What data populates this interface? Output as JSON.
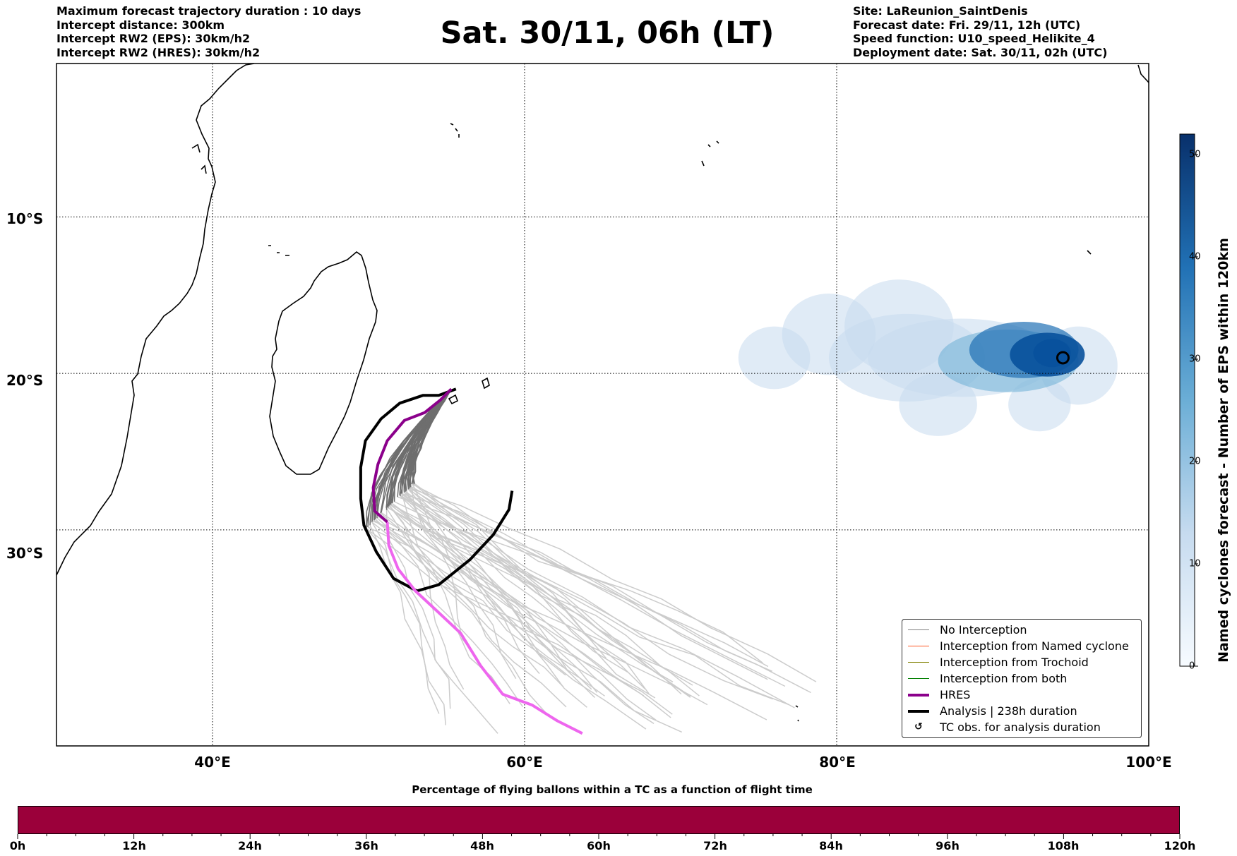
{
  "header": {
    "left_lines": [
      "Maximum forecast trajectory duration : 10 days",
      "Intercept distance: 300km",
      "Intercept RW2 (EPS):  30km/h2",
      "Intercept RW2 (HRES): 30km/h2"
    ],
    "title": "Sat. 30/11, 06h (LT)",
    "right_lines": [
      "Site: LaReunion_SaintDenis",
      "Forecast date: Fri. 29/11, 12h (UTC)",
      "Speed function: U10_speed_Helikite_4",
      "Deployment date: Sat. 30/11, 02h (UTC)"
    ]
  },
  "map": {
    "lon_range": [
      30,
      100
    ],
    "lat_range": [
      -0.2,
      -43.8
    ],
    "lon_gridlines": [
      40,
      60,
      80
    ],
    "lat_gridlines": [
      -10,
      -20,
      -30
    ],
    "lon_labels": [
      "40°E",
      "60°E",
      "80°E",
      "100°E"
    ],
    "lat_labels": [
      "10°S",
      "20°S",
      "30°S"
    ]
  },
  "colorbar": {
    "label": "Named cyclones forecast - Number of EPS within 120km",
    "min": 0,
    "max": 52,
    "ticks": [
      "0",
      "10",
      "20",
      "30",
      "40",
      "50"
    ],
    "color_low": "#f7fbff",
    "color_high": "#08306b"
  },
  "legend": {
    "items": [
      {
        "label": "No Interception",
        "color": "#808080",
        "kind": "line-thin"
      },
      {
        "label": "Interception from Named cyclone",
        "color": "#ff5722",
        "kind": "line-thin"
      },
      {
        "label": "Interception from Trochoid",
        "color": "#808000",
        "kind": "line-thin"
      },
      {
        "label": "Interception from both",
        "color": "#008000",
        "kind": "line-thin"
      },
      {
        "label": "HRES",
        "color": "#8b008b",
        "kind": "line-thick"
      },
      {
        "label": "Analysis | 238h duration",
        "color": "#000000",
        "kind": "line-thick"
      },
      {
        "label": "TC obs. for analysis duration",
        "color": "#000000",
        "kind": "symbol",
        "symbol": "↺"
      }
    ]
  },
  "tracks": {
    "analysis_color": "#000000",
    "hres_early_color": "#8b008b",
    "hres_late_color": "#ee66ee",
    "ensemble_early_color": "#6e6e6e",
    "ensemble_late_color": "#cccccc",
    "analysis_points": [
      [
        55.6,
        -21.0
      ],
      [
        54.5,
        -21.4
      ],
      [
        53.5,
        -21.4
      ],
      [
        52.0,
        -21.9
      ],
      [
        50.8,
        -22.9
      ],
      [
        49.8,
        -24.3
      ],
      [
        49.5,
        -26.0
      ],
      [
        49.5,
        -28.0
      ],
      [
        49.7,
        -29.7
      ],
      [
        50.5,
        -31.4
      ],
      [
        51.6,
        -33.1
      ],
      [
        53.1,
        -33.9
      ],
      [
        54.5,
        -33.5
      ],
      [
        56.5,
        -31.9
      ],
      [
        58.0,
        -30.3
      ],
      [
        59.0,
        -28.7
      ],
      [
        59.2,
        -27.5
      ]
    ],
    "hres_early_points": [
      [
        55.3,
        -21.0
      ],
      [
        54.6,
        -21.7
      ],
      [
        53.6,
        -22.5
      ],
      [
        52.3,
        -23.0
      ],
      [
        51.2,
        -24.3
      ],
      [
        50.6,
        -25.8
      ],
      [
        50.3,
        -27.3
      ],
      [
        50.4,
        -28.8
      ],
      [
        51.2,
        -29.5
      ]
    ],
    "hres_late_points": [
      [
        51.2,
        -29.5
      ],
      [
        51.3,
        -31.0
      ],
      [
        51.9,
        -32.5
      ],
      [
        53.0,
        -33.9
      ],
      [
        54.3,
        -35.1
      ],
      [
        55.9,
        -36.6
      ],
      [
        57.2,
        -38.7
      ],
      [
        58.6,
        -40.5
      ],
      [
        60.5,
        -41.2
      ],
      [
        62.1,
        -42.2
      ],
      [
        63.7,
        -43.0
      ]
    ],
    "storm_center": [
      94.5,
      -19.0
    ],
    "eps_density_blobs": [
      [
        76.0,
        -19.0,
        2.3,
        2.0,
        0.12
      ],
      [
        79.5,
        -17.5,
        3.0,
        2.6,
        0.12
      ],
      [
        84.0,
        -17.0,
        3.5,
        3.0,
        0.12
      ],
      [
        86.5,
        -22.0,
        2.5,
        2.0,
        0.12
      ],
      [
        93.0,
        -22.0,
        2.0,
        1.7,
        0.12
      ],
      [
        95.5,
        -19.5,
        2.5,
        2.5,
        0.15
      ],
      [
        84.5,
        -19.0,
        5.0,
        2.8,
        0.14
      ],
      [
        88.0,
        -19.0,
        6.0,
        2.5,
        0.2
      ],
      [
        91.0,
        -19.2,
        4.5,
        2.0,
        0.35
      ],
      [
        92.0,
        -18.5,
        3.5,
        1.8,
        0.55
      ],
      [
        93.5,
        -18.8,
        2.4,
        1.4,
        0.8
      ],
      [
        93.8,
        -18.7,
        1.2,
        0.9,
        1.0
      ]
    ]
  },
  "bottom_bar": {
    "title": "Percentage of flying ballons within a TC as a function of flight time",
    "color": "#9b003a",
    "tick_labels": [
      "0h",
      "12h",
      "24h",
      "36h",
      "48h",
      "60h",
      "72h",
      "84h",
      "96h",
      "108h",
      "120h"
    ]
  }
}
